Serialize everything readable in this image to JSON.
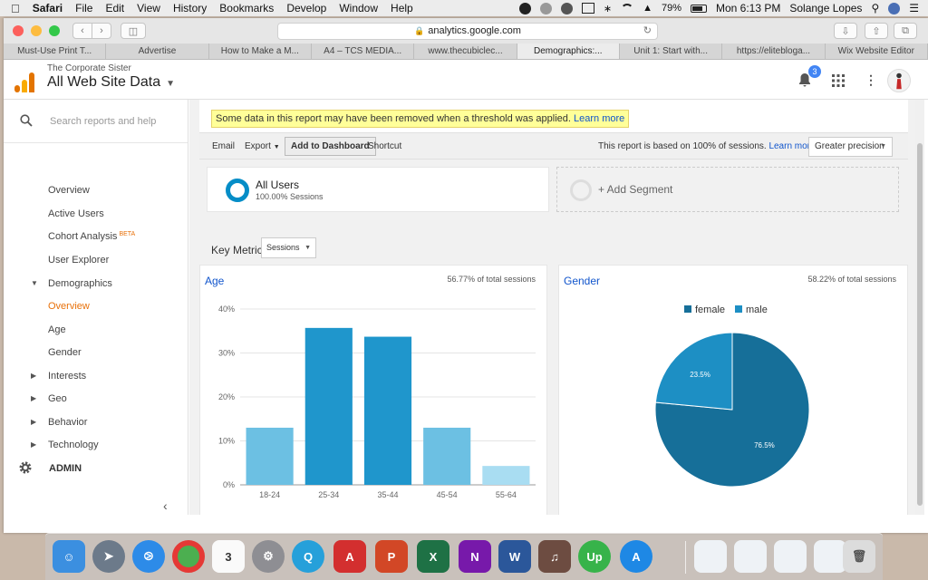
{
  "menubar": {
    "app": "Safari",
    "menus": [
      "File",
      "Edit",
      "View",
      "History",
      "Bookmarks",
      "Develop",
      "Window",
      "Help"
    ],
    "battery": "79%",
    "clock": "Mon 6:13 PM",
    "user": "Solange Lopes"
  },
  "browser": {
    "url": "analytics.google.com",
    "tabs": [
      "Must-Use Print T...",
      "Advertise",
      "How to Make a M...",
      "A4 – TCS MEDIA...",
      "www.thecubiclec...",
      "Demographics:...",
      "Unit 1: Start with...",
      "https://elitebloga...",
      "Wix Website Editor"
    ],
    "active_tab_index": 5
  },
  "ga": {
    "account": "The Corporate Sister",
    "property": "All Web Site Data",
    "notifications": "3"
  },
  "nav": {
    "search_placeholder": "Search reports and help",
    "overview": "Overview",
    "active_users": "Active Users",
    "cohort": "Cohort Analysis",
    "beta": "BETA",
    "user_explorer": "User Explorer",
    "demographics": "Demographics",
    "demo_overview": "Overview",
    "age": "Age",
    "gender": "Gender",
    "interests": "Interests",
    "geo": "Geo",
    "behavior": "Behavior",
    "technology": "Technology",
    "admin": "ADMIN"
  },
  "notice": {
    "text": "Some data in this report may have been removed when a threshold was applied.",
    "link": "Learn more"
  },
  "toolbar": {
    "email": "Email",
    "export": "Export",
    "add_dashboard": "Add to Dashboard",
    "shortcut": "Shortcut",
    "sessions_note": "This report is based on 100% of sessions.",
    "learn_more": "Learn more",
    "precision": "Greater precision"
  },
  "segments": {
    "all_users": "All Users",
    "all_users_sub": "100.00% Sessions",
    "add": "+ Add Segment"
  },
  "key_metric": {
    "label": "Key Metric:",
    "value": "Sessions"
  },
  "age_panel": {
    "title": "Age",
    "pct": "56.77% of total sessions"
  },
  "gender_panel": {
    "title": "Gender",
    "pct": "58.22% of total sessions"
  },
  "chart_data": [
    {
      "type": "bar",
      "title": "Age",
      "categories": [
        "18-24",
        "25-34",
        "35-44",
        "45-54",
        "55-64"
      ],
      "values": [
        13,
        35.7,
        33.7,
        13,
        4.3
      ],
      "ylim": [
        0,
        40
      ],
      "yticks": [
        "0%",
        "10%",
        "20%",
        "30%",
        "40%"
      ],
      "colors": [
        "#6cc0e3",
        "#1f96cc",
        "#1f96cc",
        "#6cc0e3",
        "#a9ddf2"
      ],
      "grid": true
    },
    {
      "type": "pie",
      "title": "Gender",
      "labels": [
        "female",
        "male"
      ],
      "values": [
        76.5,
        23.5
      ],
      "value_labels": [
        "76.5%",
        "23.5%"
      ],
      "colors": [
        "#166f99",
        "#1d8fc4"
      ],
      "legend": "top"
    }
  ]
}
